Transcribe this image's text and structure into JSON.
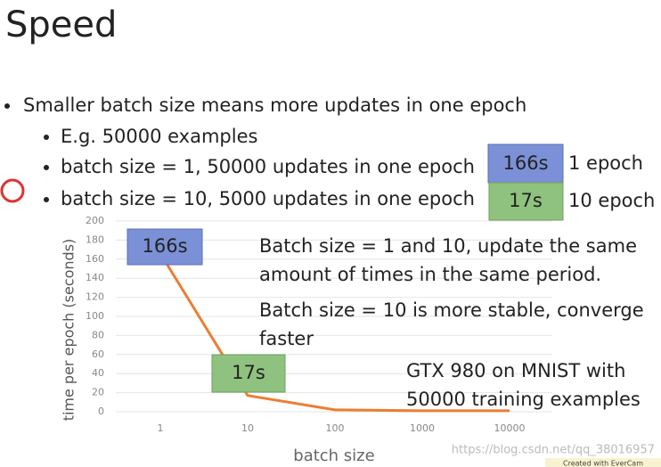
{
  "title": "Speed",
  "bullets": [
    "Smaller batch size means more updates in one epoch",
    "E.g. 50000 examples",
    "batch size = 1, 50000 updates in one epoch",
    "batch size = 10, 5000 updates in one epoch"
  ],
  "side_boxes": [
    {
      "time": "166s",
      "epochs": "1 epoch"
    },
    {
      "time": "17s",
      "epochs": "10 epoch"
    }
  ],
  "notes": [
    "Batch size = 1 and 10, update the same",
    "amount of times in the same period.",
    "Batch size = 10 is more stable, converge",
    "faster",
    "GTX 980 on MNIST with",
    "50000 training examples"
  ],
  "watermark": "https://blog.csdn.net/qq_38016957",
  "recorder": "Created with EverCam",
  "chart_data": {
    "type": "line",
    "x_label": "batch size",
    "y_label": "time per epoch (seconds)",
    "categories": [
      "1",
      "10",
      "100",
      "1000",
      "10000"
    ],
    "series": [
      {
        "name": "time per epoch",
        "color": "#ed7d31",
        "values": [
          166,
          17,
          2,
          1,
          1
        ]
      }
    ],
    "ylim": [
      0,
      200
    ],
    "yticks": [
      0,
      20,
      40,
      60,
      80,
      100,
      120,
      140,
      160,
      180,
      200
    ],
    "grid": true,
    "callouts": [
      "166s",
      "17s"
    ]
  }
}
